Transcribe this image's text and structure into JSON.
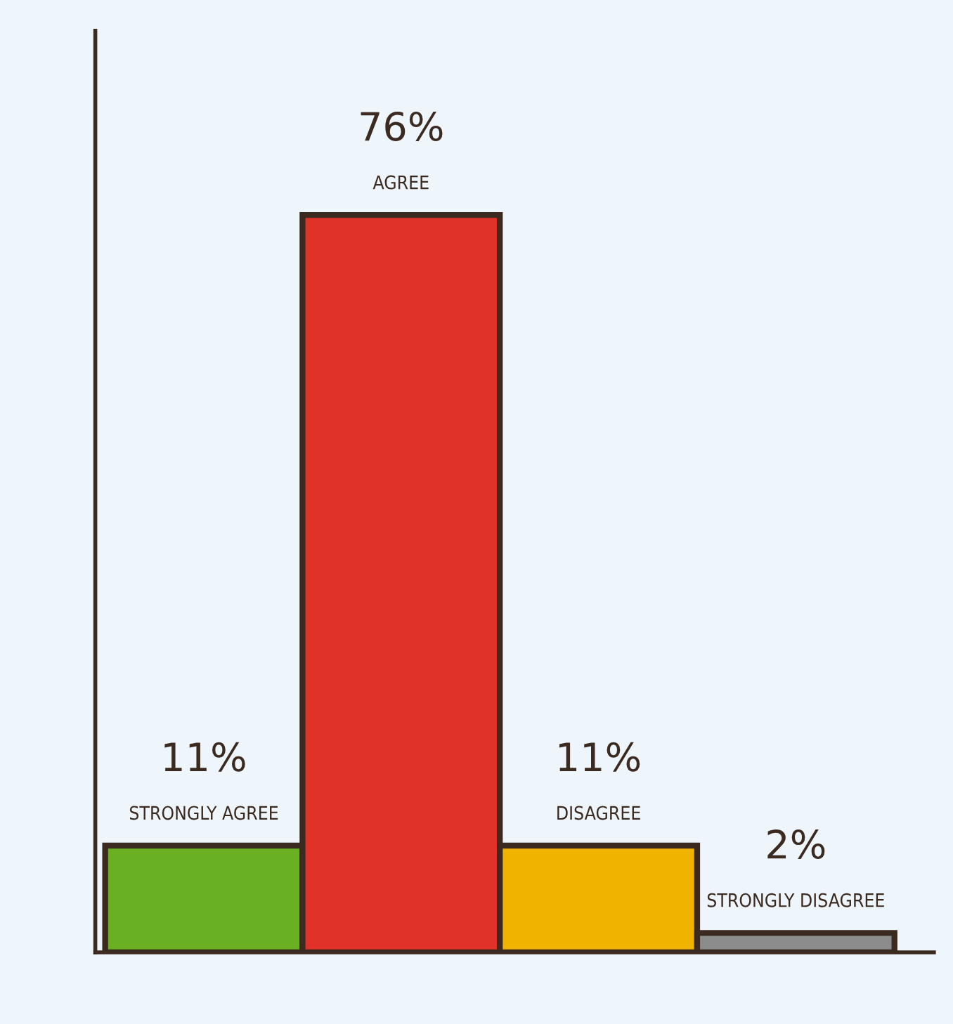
{
  "chart_data": {
    "type": "bar",
    "categories": [
      "STRONGLY AGREE",
      "AGREE",
      "DISAGREE",
      "STRONGLY DISAGREE"
    ],
    "values": [
      11,
      76,
      11,
      2
    ],
    "colors": [
      "#6ab023",
      "#e03228",
      "#f0b400",
      "#8c8c8c"
    ],
    "value_labels": [
      "11%",
      "76%",
      "11%",
      "2%"
    ],
    "legend": false
  }
}
